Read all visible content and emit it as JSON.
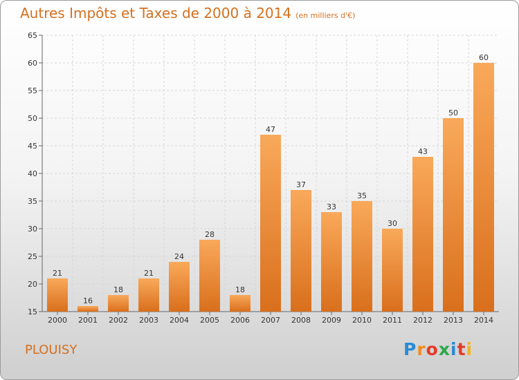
{
  "title": "Autres Impôts et Taxes de 2000 à 2014",
  "subtitle": "(en milliers d'€)",
  "commune": "PLOUISY",
  "logo": {
    "letters": [
      "P",
      "r",
      "o",
      "x",
      "i",
      "t",
      "i"
    ],
    "colors": [
      "#2a8ad4",
      "#f28c1e",
      "#e23b2a",
      "#2aa84a",
      "#2a8ad4",
      "#e23b2a",
      "#f2b41e"
    ]
  },
  "colors": {
    "bar_top": "#f9a95a",
    "bar_bottom": "#d96f1c",
    "accent": "#d4701f"
  },
  "chart_data": {
    "type": "bar",
    "title": "Autres Impôts et Taxes de 2000 à 2014",
    "subtitle": "(en milliers d'€)",
    "categories": [
      "2000",
      "2001",
      "2002",
      "2003",
      "2004",
      "2005",
      "2006",
      "2007",
      "2008",
      "2009",
      "2010",
      "2011",
      "2012",
      "2013",
      "2014"
    ],
    "values": [
      21,
      16,
      18,
      21,
      24,
      28,
      18,
      47,
      37,
      33,
      35,
      30,
      43,
      50,
      60
    ],
    "ylim": [
      15,
      65
    ],
    "yticks": [
      15,
      20,
      25,
      30,
      35,
      40,
      45,
      50,
      55,
      60,
      65
    ],
    "grid": true,
    "data_labels": true
  }
}
